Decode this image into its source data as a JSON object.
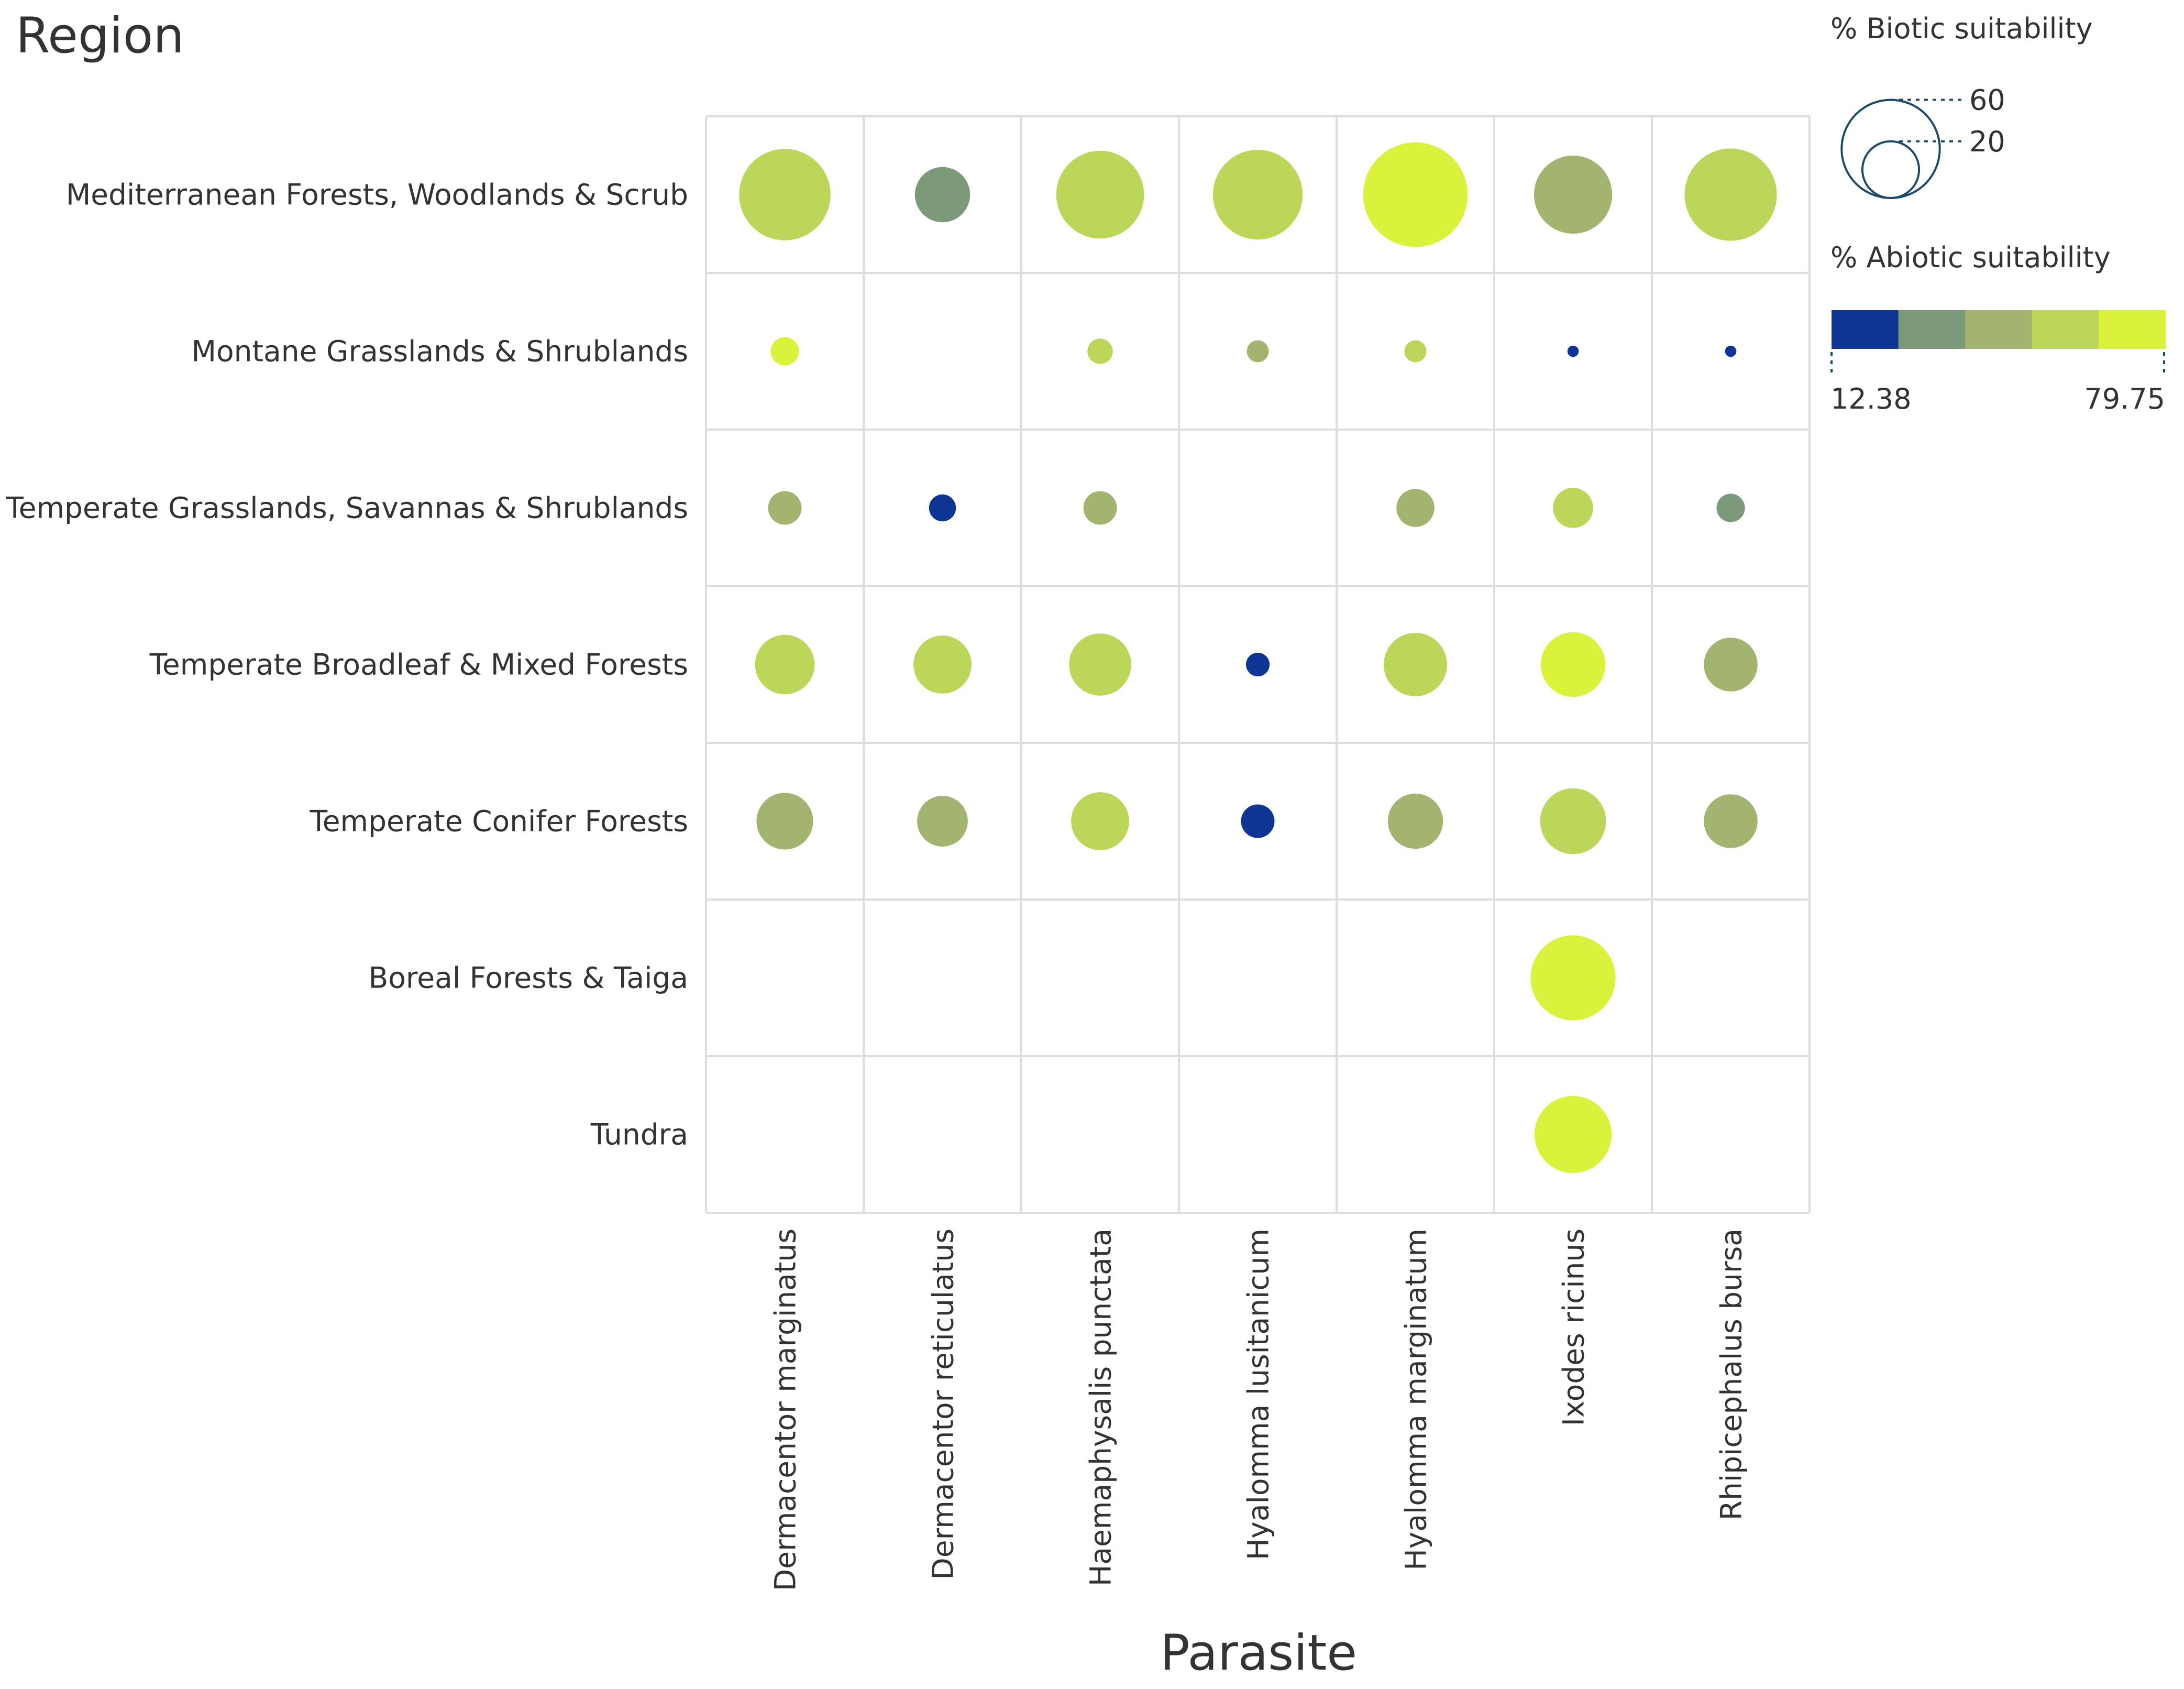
{
  "chart_data": {
    "type": "bubble-matrix",
    "y_title": "Region",
    "x_title": "Parasite",
    "rows": [
      "Mediterranean Forests, Woodlands & Scrub",
      "Montane Grasslands & Shrublands",
      "Temperate Grasslands, Savannas & Shrublands",
      "Temperate Broadleaf & Mixed Forests",
      "Temperate Conifer Forests",
      "Boreal Forests & Taiga",
      "Tundra"
    ],
    "columns": [
      "Dermacentor marginatus",
      "Dermacentor reticulatus",
      "Haemaphysalis punctata",
      "Hyalomma lusitanicum",
      "Hyalomma marginatum",
      "Ixodes ricinus",
      "Rhipicephalus bursa"
    ],
    "cells": [
      {
        "row": 0,
        "col": 0,
        "biotic": 52,
        "abiotic": 62
      },
      {
        "row": 0,
        "col": 1,
        "biotic": 19,
        "abiotic": 30
      },
      {
        "row": 0,
        "col": 2,
        "biotic": 48,
        "abiotic": 62
      },
      {
        "row": 0,
        "col": 3,
        "biotic": 50,
        "abiotic": 62
      },
      {
        "row": 0,
        "col": 4,
        "biotic": 68,
        "abiotic": 78
      },
      {
        "row": 0,
        "col": 5,
        "biotic": 38,
        "abiotic": 48
      },
      {
        "row": 0,
        "col": 6,
        "biotic": 53,
        "abiotic": 62
      },
      {
        "row": 1,
        "col": 0,
        "biotic": 5,
        "abiotic": 76
      },
      {
        "row": 1,
        "col": 2,
        "biotic": 4,
        "abiotic": 62
      },
      {
        "row": 1,
        "col": 3,
        "biotic": 3,
        "abiotic": 48
      },
      {
        "row": 1,
        "col": 4,
        "biotic": 3,
        "abiotic": 62
      },
      {
        "row": 1,
        "col": 5,
        "biotic": 0.8,
        "abiotic": 13
      },
      {
        "row": 1,
        "col": 6,
        "biotic": 0.8,
        "abiotic": 13
      },
      {
        "row": 2,
        "col": 0,
        "biotic": 7,
        "abiotic": 48
      },
      {
        "row": 2,
        "col": 1,
        "biotic": 4.5,
        "abiotic": 14
      },
      {
        "row": 2,
        "col": 2,
        "biotic": 7,
        "abiotic": 48
      },
      {
        "row": 2,
        "col": 4,
        "biotic": 9,
        "abiotic": 48
      },
      {
        "row": 2,
        "col": 5,
        "biotic": 10,
        "abiotic": 62
      },
      {
        "row": 2,
        "col": 6,
        "biotic": 5,
        "abiotic": 30
      },
      {
        "row": 3,
        "col": 0,
        "biotic": 22,
        "abiotic": 62
      },
      {
        "row": 3,
        "col": 1,
        "biotic": 21,
        "abiotic": 62
      },
      {
        "row": 3,
        "col": 2,
        "biotic": 24,
        "abiotic": 62
      },
      {
        "row": 3,
        "col": 3,
        "biotic": 3.5,
        "abiotic": 14
      },
      {
        "row": 3,
        "col": 4,
        "biotic": 25,
        "abiotic": 62
      },
      {
        "row": 3,
        "col": 5,
        "biotic": 26,
        "abiotic": 78
      },
      {
        "row": 3,
        "col": 6,
        "biotic": 18,
        "abiotic": 48
      },
      {
        "row": 4,
        "col": 0,
        "biotic": 20,
        "abiotic": 48
      },
      {
        "row": 4,
        "col": 1,
        "biotic": 16,
        "abiotic": 48
      },
      {
        "row": 4,
        "col": 2,
        "biotic": 21,
        "abiotic": 62
      },
      {
        "row": 4,
        "col": 3,
        "biotic": 7,
        "abiotic": 13
      },
      {
        "row": 4,
        "col": 4,
        "biotic": 19,
        "abiotic": 48
      },
      {
        "row": 4,
        "col": 5,
        "biotic": 27,
        "abiotic": 62
      },
      {
        "row": 4,
        "col": 6,
        "biotic": 18,
        "abiotic": 48
      },
      {
        "row": 5,
        "col": 5,
        "biotic": 45,
        "abiotic": 78
      },
      {
        "row": 6,
        "col": 5,
        "biotic": 37,
        "abiotic": 78
      }
    ],
    "size_legend": {
      "title": "% Biotic suitability",
      "values": [
        60,
        20
      ],
      "labels": [
        "60",
        "20"
      ]
    },
    "color_legend": {
      "title": "% Abiotic suitability",
      "min": 12.38,
      "max": 79.75,
      "min_label": "12.38",
      "max_label": "79.75",
      "colors": [
        "#0e3494",
        "#7c9a79",
        "#a3b470",
        "#bcd65a",
        "#daf23c"
      ]
    },
    "colors": {
      "grid": "#dddddd",
      "legend_circle": "#1b4a6b",
      "text": "#333333"
    }
  }
}
